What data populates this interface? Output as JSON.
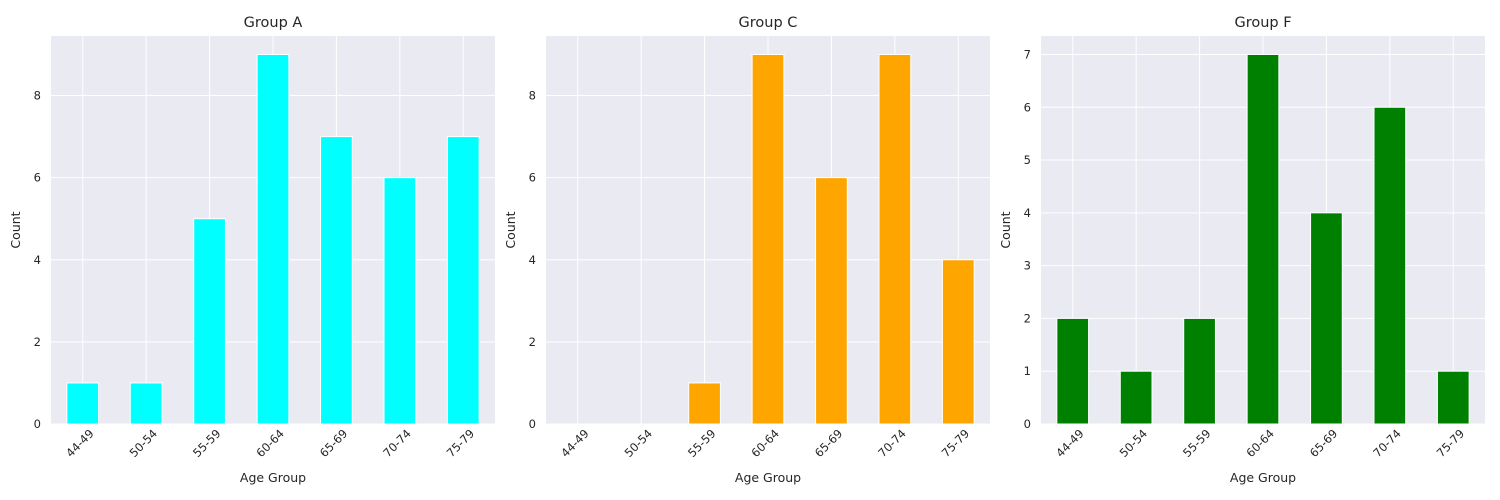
{
  "chart_data": [
    {
      "type": "bar",
      "title": "Group A",
      "xlabel": "Age Group",
      "ylabel": "Count",
      "categories": [
        "44-49",
        "50-54",
        "55-59",
        "60-64",
        "65-69",
        "70-74",
        "75-79"
      ],
      "values": [
        1,
        1,
        5,
        9,
        7,
        6,
        7
      ],
      "ylim": [
        0,
        9.45
      ],
      "yticks": [
        0,
        2,
        4,
        6,
        8
      ],
      "color": "#00ffff",
      "grid": true
    },
    {
      "type": "bar",
      "title": "Group C",
      "xlabel": "Age Group",
      "ylabel": "Count",
      "categories": [
        "44-49",
        "50-54",
        "55-59",
        "60-64",
        "65-69",
        "70-74",
        "75-79"
      ],
      "values": [
        0,
        0,
        1,
        9,
        6,
        9,
        4
      ],
      "ylim": [
        0,
        9.45
      ],
      "yticks": [
        0,
        2,
        4,
        6,
        8
      ],
      "color": "#ffa500",
      "grid": true
    },
    {
      "type": "bar",
      "title": "Group F",
      "xlabel": "Age Group",
      "ylabel": "Count",
      "categories": [
        "44-49",
        "50-54",
        "55-59",
        "60-64",
        "65-69",
        "70-74",
        "75-79"
      ],
      "values": [
        2,
        1,
        2,
        7,
        4,
        6,
        1
      ],
      "ylim": [
        0,
        7.35
      ],
      "yticks": [
        0,
        1,
        2,
        3,
        4,
        5,
        6,
        7
      ],
      "color": "#008000",
      "grid": true
    }
  ]
}
